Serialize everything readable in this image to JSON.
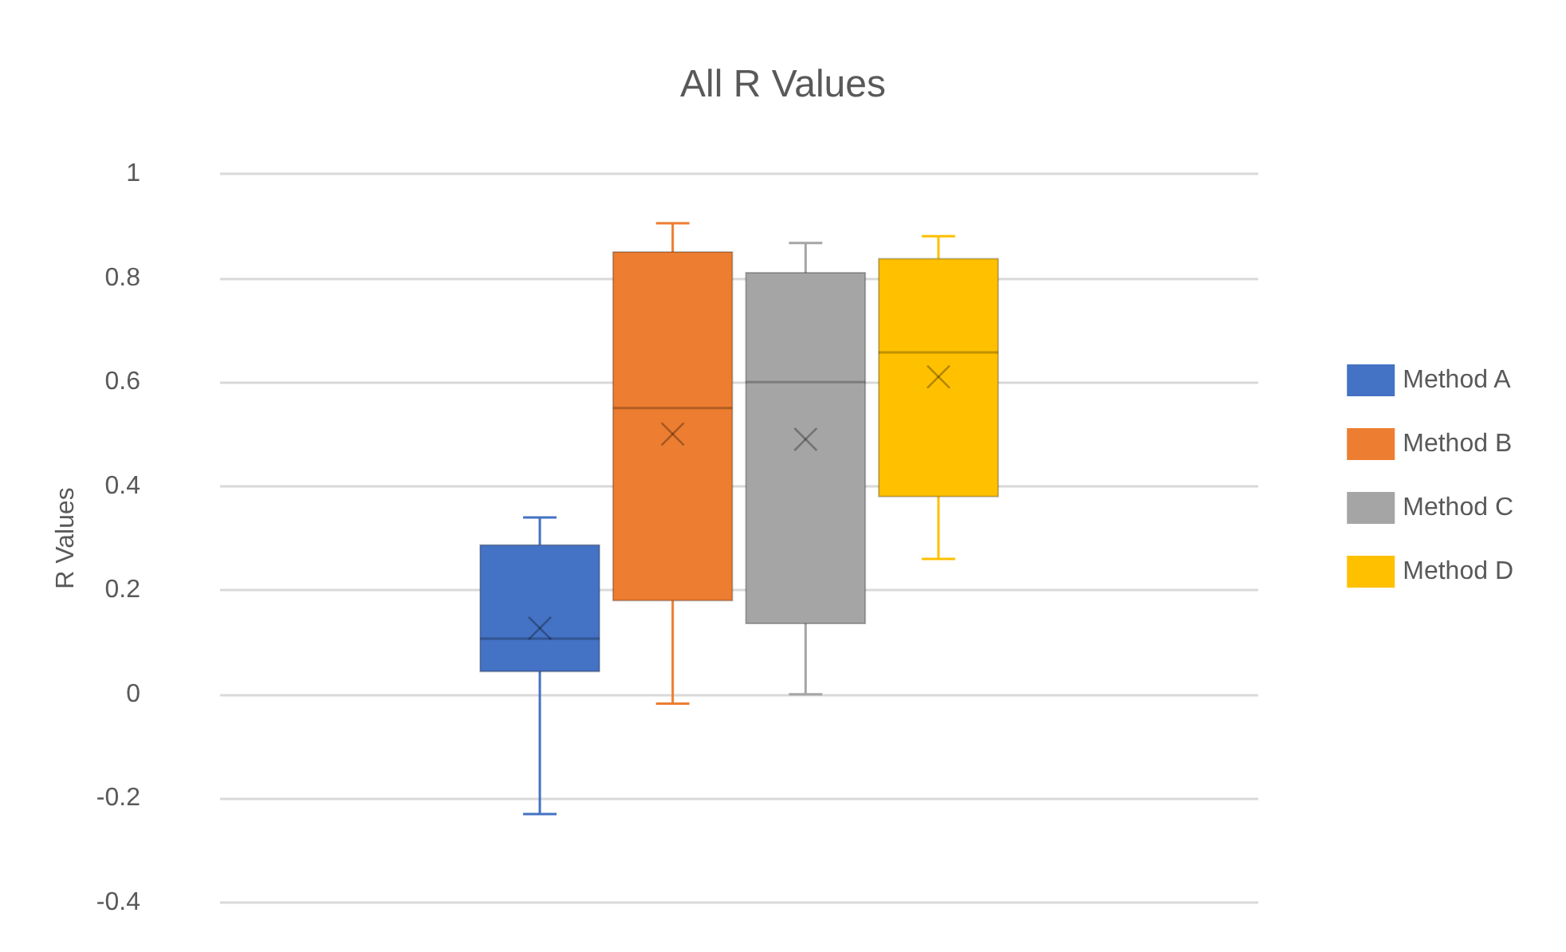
{
  "chart_data": {
    "type": "box",
    "title": "All R Values",
    "ylabel": "R Values",
    "categories": [
      null
    ],
    "series": [
      {
        "name": "Method A",
        "color": "#4472c4",
        "boxes": [
          {
            "low": -0.23,
            "q1": 0.044,
            "median": 0.107,
            "q3": 0.287,
            "high": 0.34,
            "mean": 0.127
          }
        ]
      },
      {
        "name": "Method B",
        "color": "#ed7d31",
        "boxes": [
          {
            "low": -0.018,
            "q1": 0.18,
            "median": 0.55,
            "q3": 0.85,
            "high": 0.905,
            "mean": 0.5
          }
        ]
      },
      {
        "name": "Method C",
        "color": "#a5a5a5",
        "boxes": [
          {
            "low": 0,
            "q1": 0.136,
            "median": 0.6,
            "q3": 0.81,
            "high": 0.867,
            "mean": 0.49
          }
        ]
      },
      {
        "name": "Method D",
        "color": "#ffc000",
        "boxes": [
          {
            "low": 0.26,
            "q1": 0.38,
            "median": 0.657,
            "q3": 0.837,
            "high": 0.88,
            "mean": 0.61
          }
        ]
      }
    ],
    "ylim": [
      -0.4,
      1
    ],
    "yticks": [
      -0.4,
      -0.2,
      0,
      0.2,
      0.4,
      0.6,
      0.8,
      1
    ],
    "grid": "y",
    "legend": "right",
    "marker": "cross"
  }
}
